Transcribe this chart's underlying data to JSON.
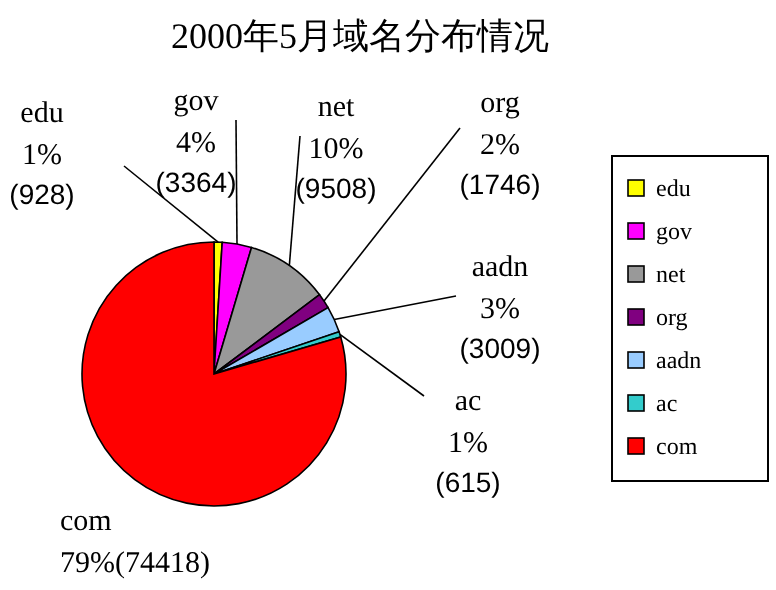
{
  "chart_data": {
    "type": "pie",
    "title": "2000年5月域名分布情况",
    "categories": [
      "edu",
      "gov",
      "net",
      "org",
      "aadn",
      "ac",
      "com"
    ],
    "values": [
      928,
      3364,
      9508,
      1746,
      3009,
      615,
      74418
    ],
    "value_labels": [
      "1%\n(928)",
      "4%\n(3364)",
      "10%\n(9508)",
      "2%\n(1746)",
      "3%\n(3009)",
      "1%\n(615)",
      "79%(74418)"
    ],
    "colors": [
      "#ffff00",
      "#ff00ff",
      "#999999",
      "#800080",
      "#99ccff",
      "#33cccc",
      "#ff0000"
    ],
    "legend": "right"
  }
}
